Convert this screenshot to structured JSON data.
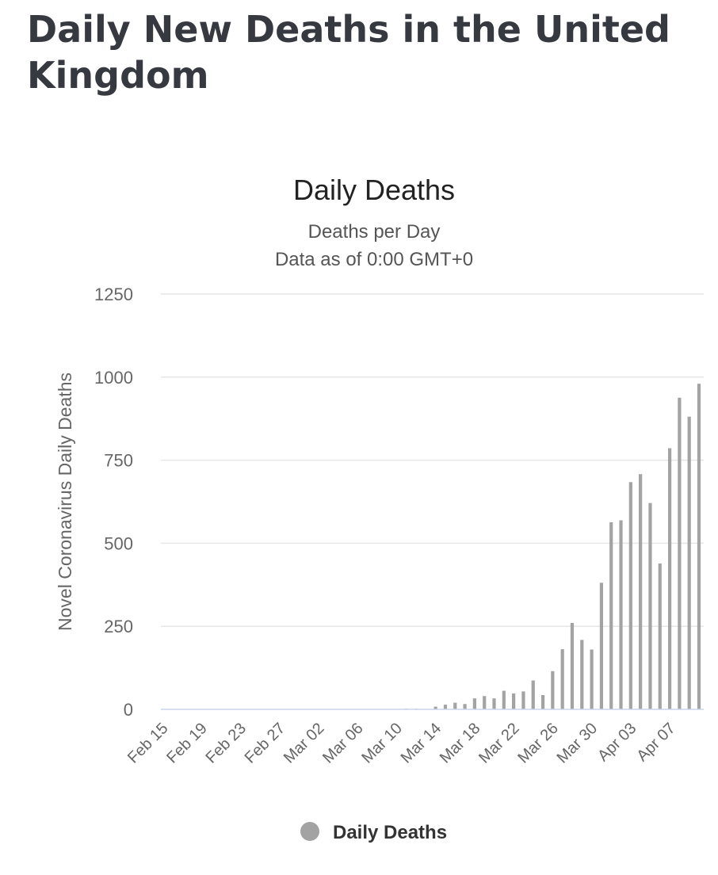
{
  "page": {
    "heading": "Daily New Deaths in the United Kingdom"
  },
  "chart_data": {
    "type": "bar",
    "title": "Daily Deaths",
    "subtitle": "Deaths per Day",
    "subtitle2": "Data as of 0:00 GMT+0",
    "xlabel": "",
    "ylabel": "Novel Coronavirus Daily Deaths",
    "ylim": [
      0,
      1250
    ],
    "yticks": [
      "0",
      "250",
      "500",
      "750",
      "1000",
      "1250"
    ],
    "grid": true,
    "legend_position": "bottom-center",
    "bar_color": "#a3a3a3",
    "categories": [
      "Feb 15",
      "Feb 16",
      "Feb 17",
      "Feb 18",
      "Feb 19",
      "Feb 20",
      "Feb 21",
      "Feb 22",
      "Feb 23",
      "Feb 24",
      "Feb 25",
      "Feb 26",
      "Feb 27",
      "Feb 28",
      "Feb 29",
      "Mar 01",
      "Mar 02",
      "Mar 03",
      "Mar 04",
      "Mar 05",
      "Mar 06",
      "Mar 07",
      "Mar 08",
      "Mar 09",
      "Mar 10",
      "Mar 11",
      "Mar 12",
      "Mar 13",
      "Mar 14",
      "Mar 15",
      "Mar 16",
      "Mar 17",
      "Mar 18",
      "Mar 19",
      "Mar 20",
      "Mar 21",
      "Mar 22",
      "Mar 23",
      "Mar 24",
      "Mar 25",
      "Mar 26",
      "Mar 27",
      "Mar 28",
      "Mar 29",
      "Mar 30",
      "Mar 31",
      "Apr 01",
      "Apr 02",
      "Apr 03",
      "Apr 04",
      "Apr 05",
      "Apr 06",
      "Apr 07",
      "Apr 08",
      "Apr 09",
      "Apr 10"
    ],
    "tick_labels": [
      "Feb 15",
      "Feb 19",
      "Feb 23",
      "Feb 27",
      "Mar 02",
      "Mar 06",
      "Mar 10",
      "Mar 14",
      "Mar 18",
      "Mar 22",
      "Mar 26",
      "Mar 30",
      "Apr 03",
      "Apr 07"
    ],
    "series": [
      {
        "name": "Daily Deaths",
        "values": [
          0,
          0,
          0,
          0,
          0,
          0,
          0,
          0,
          0,
          0,
          0,
          0,
          0,
          0,
          0,
          0,
          0,
          0,
          0,
          0,
          1,
          0,
          1,
          1,
          0,
          2,
          2,
          1,
          8,
          14,
          20,
          16,
          33,
          40,
          33,
          56,
          48,
          54,
          87,
          43,
          115,
          181,
          260,
          209,
          180,
          381,
          563,
          569,
          684,
          708,
          621,
          439,
          786,
          938,
          881,
          980
        ]
      }
    ],
    "legend": [
      {
        "name": "Daily Deaths",
        "color": "#a3a3a3"
      }
    ]
  }
}
